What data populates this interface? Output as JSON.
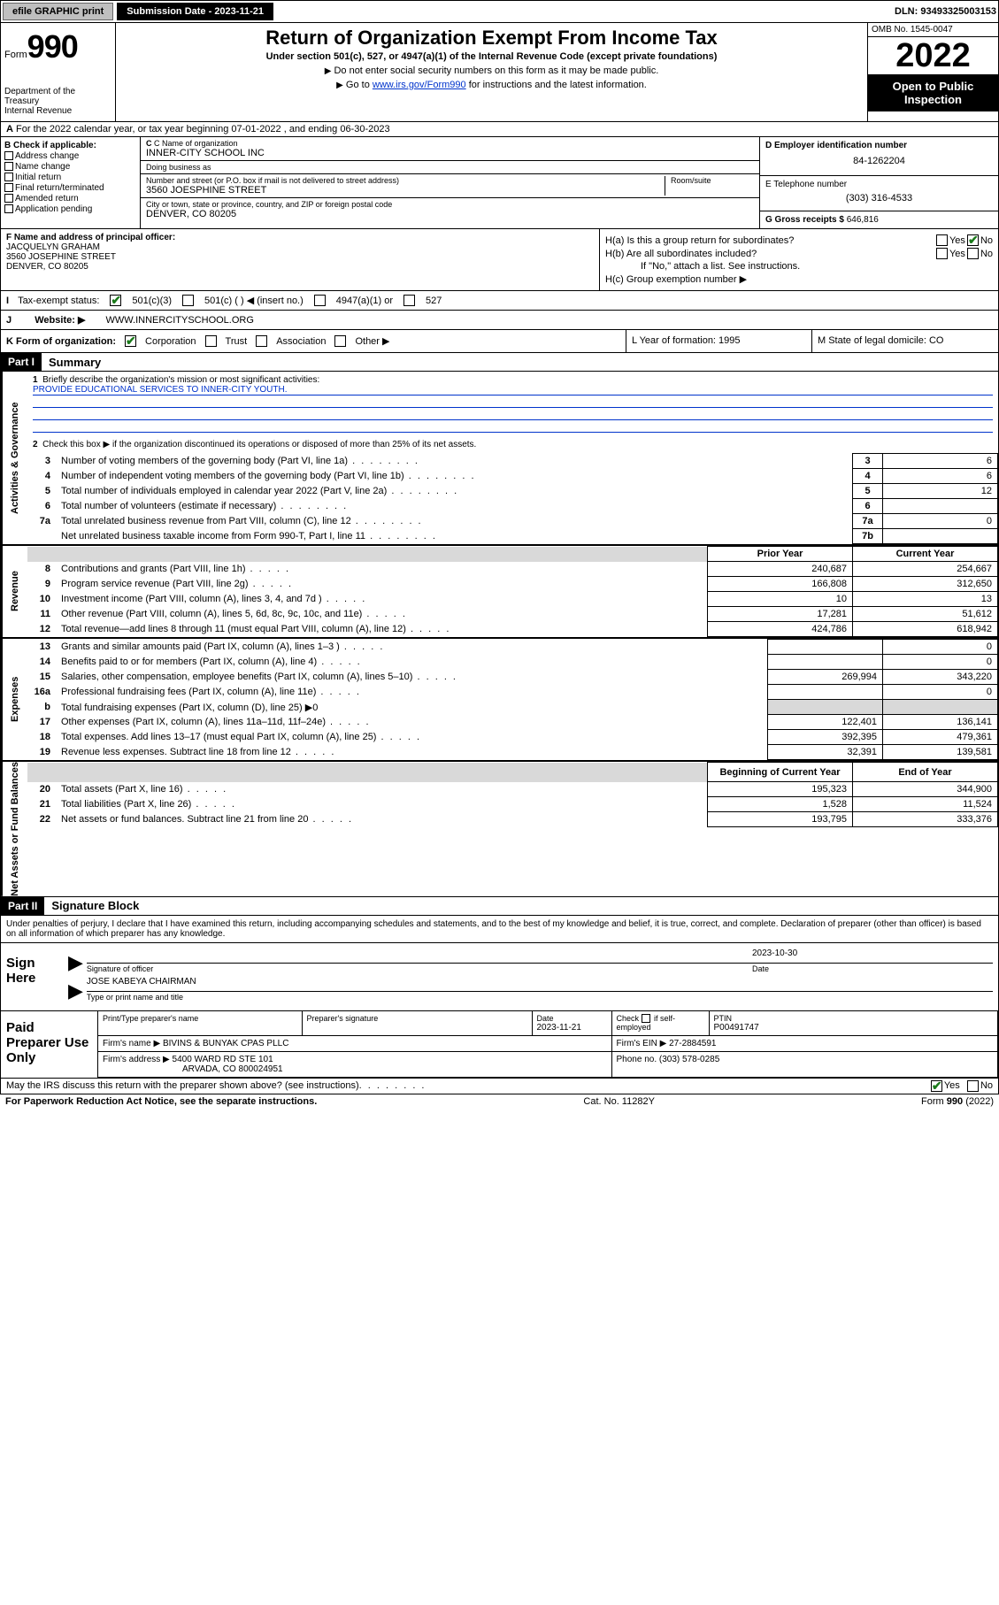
{
  "topbar": {
    "efile": "efile GRAPHIC print",
    "submission": "Submission Date - 2023-11-21",
    "dln": "DLN: 93493325003153"
  },
  "header": {
    "form": "Form",
    "num": "990",
    "dept": "Department of the Treasury\nInternal Revenue Service",
    "title": "Return of Organization Exempt From Income Tax",
    "sub": "Under section 501(c), 527, or 4947(a)(1) of the Internal Revenue Code (except private foundations)",
    "note1": "Do not enter social security numbers on this form as it may be made public.",
    "note2_a": "Go to ",
    "note2_link": "www.irs.gov/Form990",
    "note2_b": " for instructions and the latest information.",
    "omb": "OMB No. 1545-0047",
    "year": "2022",
    "inspection": "Open to Public Inspection"
  },
  "rowA": "For the 2022 calendar year, or tax year beginning 07-01-2022   , and ending 06-30-2023",
  "blockB": {
    "header": "B Check if applicable:",
    "items": [
      "Address change",
      "Name change",
      "Initial return",
      "Final return/terminated",
      "Amended return",
      "Application pending"
    ],
    "c_label": "C Name of organization",
    "c_val": "INNER-CITY SCHOOL INC",
    "dba_label": "Doing business as",
    "dba_val": "",
    "addr_label": "Number and street (or P.O. box if mail is not delivered to street address)",
    "room_label": "Room/suite",
    "addr_val": "3560 JOESPHINE STREET",
    "city_label": "City or town, state or province, country, and ZIP or foreign postal code",
    "city_val": "DENVER, CO  80205",
    "d_label": "D Employer identification number",
    "d_val": "84-1262204",
    "e_label": "E Telephone number",
    "e_val": "(303) 316-4533",
    "g_label": "G Gross receipts $",
    "g_val": "646,816"
  },
  "rowF": {
    "f_label": "F Name and address of principal officer:",
    "f_name": "JACQUELYN GRAHAM",
    "f_addr1": "3560 JOSEPHINE STREET",
    "f_addr2": "DENVER, CO  80205",
    "ha": "H(a)  Is this a group return for subordinates?",
    "hb": "H(b)  Are all subordinates included?",
    "hb_note": "If \"No,\" attach a list. See instructions.",
    "hc": "H(c)  Group exemption number ▶"
  },
  "rowI": {
    "label": "Tax-exempt status:",
    "o1": "501(c)(3)",
    "o2": "501(c) (  ) ◀ (insert no.)",
    "o3": "4947(a)(1) or",
    "o4": "527"
  },
  "rowJ": {
    "label": "Website: ▶",
    "val": "WWW.INNERCITYSCHOOL.ORG"
  },
  "rowK": {
    "label": "K Form of organization:",
    "o1": "Corporation",
    "o2": "Trust",
    "o3": "Association",
    "o4": "Other ▶",
    "l": "L Year of formation: 1995",
    "m": "M State of legal domicile: CO"
  },
  "parts": {
    "p1": "Part I",
    "p1_title": "Summary",
    "p2": "Part II",
    "p2_title": "Signature Block"
  },
  "summary": {
    "sec_gov": "Activities & Governance",
    "sec_rev": "Revenue",
    "sec_exp": "Expenses",
    "sec_net": "Net Assets or Fund Balances",
    "q1": "Briefly describe the organization's mission or most significant activities:",
    "q1_val": "PROVIDE EDUCATIONAL SERVICES TO INNER-CITY YOUTH.",
    "q2": "Check this box ▶        if the organization discontinued its operations or disposed of more than 25% of its net assets.",
    "rows_gov": [
      {
        "n": "3",
        "t": "Number of voting members of the governing body (Part VI, line 1a)",
        "bn": "3",
        "v": "6"
      },
      {
        "n": "4",
        "t": "Number of independent voting members of the governing body (Part VI, line 1b)",
        "bn": "4",
        "v": "6"
      },
      {
        "n": "5",
        "t": "Total number of individuals employed in calendar year 2022 (Part V, line 2a)",
        "bn": "5",
        "v": "12"
      },
      {
        "n": "6",
        "t": "Total number of volunteers (estimate if necessary)",
        "bn": "6",
        "v": ""
      },
      {
        "n": "7a",
        "t": "Total unrelated business revenue from Part VIII, column (C), line 12",
        "bn": "7a",
        "v": "0"
      },
      {
        "n": "",
        "t": "Net unrelated business taxable income from Form 990-T, Part I, line 11",
        "bn": "7b",
        "v": ""
      }
    ],
    "hdr_prior": "Prior Year",
    "hdr_curr": "Current Year",
    "hdr_beg": "Beginning of Current Year",
    "hdr_end": "End of Year",
    "rows_rev": [
      {
        "n": "8",
        "t": "Contributions and grants (Part VIII, line 1h)",
        "p": "240,687",
        "c": "254,667"
      },
      {
        "n": "9",
        "t": "Program service revenue (Part VIII, line 2g)",
        "p": "166,808",
        "c": "312,650"
      },
      {
        "n": "10",
        "t": "Investment income (Part VIII, column (A), lines 3, 4, and 7d )",
        "p": "10",
        "c": "13"
      },
      {
        "n": "11",
        "t": "Other revenue (Part VIII, column (A), lines 5, 6d, 8c, 9c, 10c, and 11e)",
        "p": "17,281",
        "c": "51,612"
      },
      {
        "n": "12",
        "t": "Total revenue—add lines 8 through 11 (must equal Part VIII, column (A), line 12)",
        "p": "424,786",
        "c": "618,942"
      }
    ],
    "rows_exp": [
      {
        "n": "13",
        "t": "Grants and similar amounts paid (Part IX, column (A), lines 1–3 )",
        "p": "",
        "c": "0"
      },
      {
        "n": "14",
        "t": "Benefits paid to or for members (Part IX, column (A), line 4)",
        "p": "",
        "c": "0"
      },
      {
        "n": "15",
        "t": "Salaries, other compensation, employee benefits (Part IX, column (A), lines 5–10)",
        "p": "269,994",
        "c": "343,220"
      },
      {
        "n": "16a",
        "t": "Professional fundraising fees (Part IX, column (A), line 11e)",
        "p": "",
        "c": "0"
      },
      {
        "n": "b",
        "t": "Total fundraising expenses (Part IX, column (D), line 25) ▶0",
        "p": "grey",
        "c": "grey"
      },
      {
        "n": "17",
        "t": "Other expenses (Part IX, column (A), lines 11a–11d, 11f–24e)",
        "p": "122,401",
        "c": "136,141"
      },
      {
        "n": "18",
        "t": "Total expenses. Add lines 13–17 (must equal Part IX, column (A), line 25)",
        "p": "392,395",
        "c": "479,361"
      },
      {
        "n": "19",
        "t": "Revenue less expenses. Subtract line 18 from line 12",
        "p": "32,391",
        "c": "139,581"
      }
    ],
    "rows_net": [
      {
        "n": "20",
        "t": "Total assets (Part X, line 16)",
        "p": "195,323",
        "c": "344,900"
      },
      {
        "n": "21",
        "t": "Total liabilities (Part X, line 26)",
        "p": "1,528",
        "c": "11,524"
      },
      {
        "n": "22",
        "t": "Net assets or fund balances. Subtract line 21 from line 20",
        "p": "193,795",
        "c": "333,376"
      }
    ]
  },
  "sig": {
    "penalty": "Under penalties of perjury, I declare that I have examined this return, including accompanying schedules and statements, and to the best of my knowledge and belief, it is true, correct, and complete. Declaration of preparer (other than officer) is based on all information of which preparer has any knowledge.",
    "sign_here": "Sign Here",
    "sig_officer": "Signature of officer",
    "date": "Date",
    "date_val": "2023-10-30",
    "name_val": "JOSE KABEYA  CHAIRMAN",
    "name_label": "Type or print name and title"
  },
  "prep": {
    "label": "Paid Preparer Use Only",
    "h1": "Print/Type preparer's name",
    "h2": "Preparer's signature",
    "h3": "Date",
    "h3_val": "2023-11-21",
    "h4": "Check        if self-employed",
    "h5": "PTIN",
    "h5_val": "P00491747",
    "firm_name_l": "Firm's name    ▶",
    "firm_name": "BIVINS & BUNYAK CPAS PLLC",
    "firm_ein_l": "Firm's EIN ▶",
    "firm_ein": "27-2884591",
    "firm_addr_l": "Firm's address ▶",
    "firm_addr1": "5400 WARD RD STE 101",
    "firm_addr2": "ARVADA, CO  800024951",
    "phone_l": "Phone no.",
    "phone": "(303) 578-0285"
  },
  "footer": {
    "q": "May the IRS discuss this return with the preparer shown above? (see instructions)",
    "yes": "Yes",
    "no": "No",
    "pra": "For Paperwork Reduction Act Notice, see the separate instructions.",
    "cat": "Cat. No. 11282Y",
    "form": "Form 990 (2022)"
  },
  "colors": {
    "link": "#0033cc",
    "check": "#1a7a1a",
    "grey": "#d9d9d9"
  }
}
